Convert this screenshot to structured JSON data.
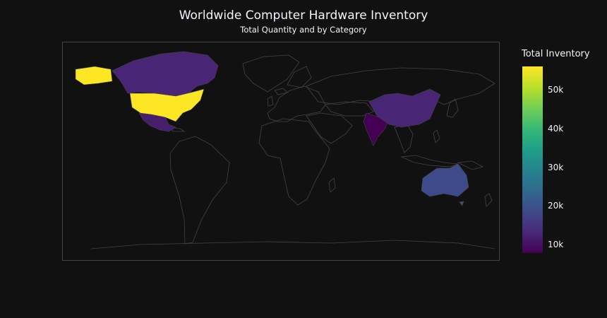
{
  "header": {
    "title": "Worldwide Computer Hardware Inventory",
    "subtitle": "Total Quantity and by Category"
  },
  "colorbar": {
    "title": "Total Inventory",
    "ticks": [
      "10k",
      "20k",
      "30k",
      "40k",
      "50k"
    ],
    "min": 7000,
    "max": 56000
  },
  "colors": {
    "background": "#111111",
    "land_outline": "#444444",
    "viridis": [
      "#440154",
      "#482878",
      "#3e4989",
      "#31688e",
      "#26828e",
      "#1f9e89",
      "#35b779",
      "#6ece58",
      "#b5de2b",
      "#fde725"
    ]
  },
  "chart_data": {
    "type": "choropleth",
    "title": "Worldwide Computer Hardware Inventory",
    "subtitle": "Total Quantity and by Category",
    "colorscale": "Viridis",
    "colorbar_title": "Total Inventory",
    "range": [
      7000,
      56000
    ],
    "locations": [
      "United States",
      "Canada",
      "Mexico",
      "China",
      "India",
      "Australia"
    ],
    "values": [
      56000,
      12000,
      11000,
      12000,
      7000,
      18000
    ]
  }
}
